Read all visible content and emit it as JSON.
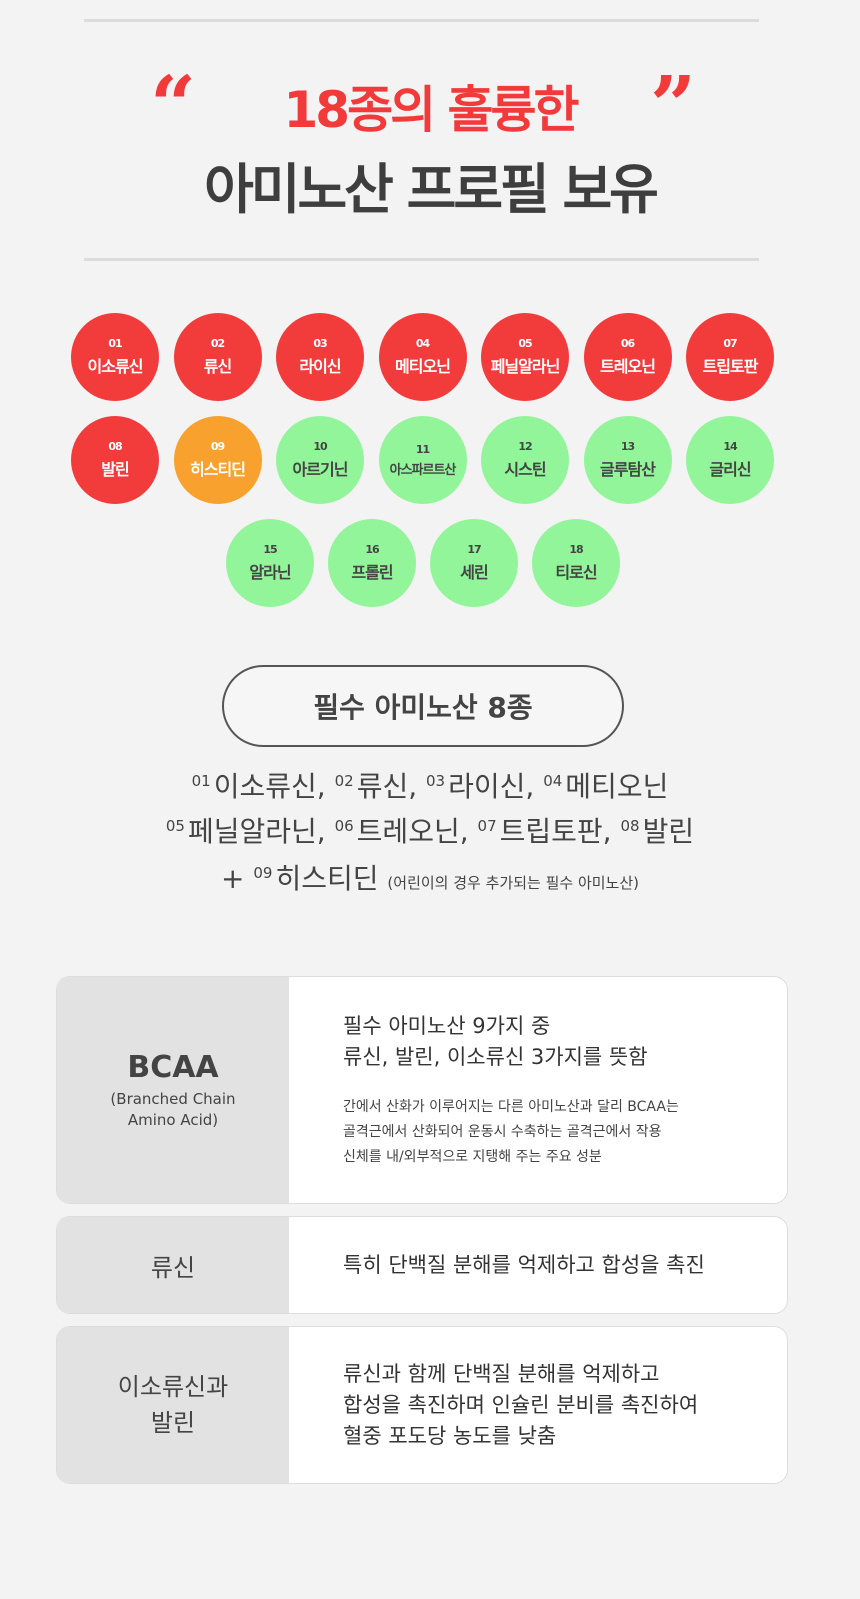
{
  "header": {
    "quote_open": "“",
    "quote_close": "”",
    "title_line1": "18종의 훌륭한",
    "title_line2": "아미노산 프로필 보유"
  },
  "amino_acids": [
    {
      "num": "01",
      "name": "이소류신",
      "color": "red"
    },
    {
      "num": "02",
      "name": "류신",
      "color": "red"
    },
    {
      "num": "03",
      "name": "라이신",
      "color": "red"
    },
    {
      "num": "04",
      "name": "메티오닌",
      "color": "red"
    },
    {
      "num": "05",
      "name": "페닐알라닌",
      "color": "red"
    },
    {
      "num": "06",
      "name": "트레오닌",
      "color": "red"
    },
    {
      "num": "07",
      "name": "트립토판",
      "color": "red"
    },
    {
      "num": "08",
      "name": "발린",
      "color": "red"
    },
    {
      "num": "09",
      "name": "히스티딘",
      "color": "orange"
    },
    {
      "num": "10",
      "name": "아르기닌",
      "color": "green"
    },
    {
      "num": "11",
      "name": "아스파르트산",
      "color": "green"
    },
    {
      "num": "12",
      "name": "시스틴",
      "color": "green"
    },
    {
      "num": "13",
      "name": "글루탐산",
      "color": "green"
    },
    {
      "num": "14",
      "name": "글리신",
      "color": "green"
    },
    {
      "num": "15",
      "name": "알라닌",
      "color": "green"
    },
    {
      "num": "16",
      "name": "프롤린",
      "color": "green"
    },
    {
      "num": "17",
      "name": "세린",
      "color": "green"
    },
    {
      "num": "18",
      "name": "티로신",
      "color": "green"
    }
  ],
  "colors": {
    "red": "#f23c3c",
    "orange": "#f8a12e",
    "green": "#93f59a"
  },
  "essential": {
    "title": "필수 아미노산 8종",
    "line1": [
      {
        "n": "01",
        "t": "이소류신,"
      },
      {
        "n": "02",
        "t": "류신,"
      },
      {
        "n": "03",
        "t": "라이신,"
      },
      {
        "n": "04",
        "t": "메티오닌"
      }
    ],
    "line2": [
      {
        "n": "05",
        "t": "페닐알라닌,"
      },
      {
        "n": "06",
        "t": "트레오닌,"
      },
      {
        "n": "07",
        "t": "트립토판,"
      },
      {
        "n": "08",
        "t": "발린"
      }
    ],
    "line3": {
      "plus": "+",
      "n": "09",
      "t": "히스티딘",
      "note": "(어린이의 경우 추가되는 필수 아미노산)"
    }
  },
  "cards": [
    {
      "title": "BCAA",
      "subtitle": "(Branched Chain\nAmino Acid)",
      "main": "필수 아미노산 9가지 중\n류신, 발린, 이소류신 3가지를 뜻함",
      "desc": "간에서 산화가 이루어지는 다른 아미노산과 달리 BCAA는\n골격근에서 산화되어 운동시 수축하는 골격근에서 작용\n신체를 내/외부적으로 지탱해 주는 주요 성분"
    },
    {
      "title": "류신",
      "main": "특히 단백질 분해를 억제하고 합성을 촉진"
    },
    {
      "title": "이소류신과\n발린",
      "main": "류신과 함께 단백질 분해를 억제하고\n합성을 촉진하며 인슐린 분비를 촉진하여\n혈중 포도당 농도를 낮춤"
    }
  ]
}
